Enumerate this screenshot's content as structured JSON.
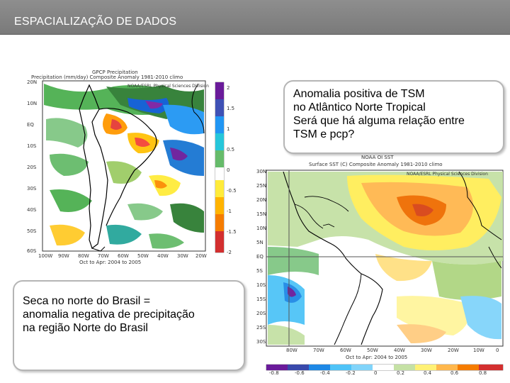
{
  "slide": {
    "title": "ESPACIALIZAÇÃO DE DADOS"
  },
  "callouts": {
    "top_right": [
      "Anomalia positiva de TSM",
      "no Atlântico Norte Tropical",
      "Será que há alguma relação entre",
      "TSM e pcp?"
    ],
    "bottom_left": [
      "Seca no norte do Brasil =",
      "anomalia negativa de precipitação",
      "na região Norte do Brasil"
    ]
  },
  "precip_map": {
    "header1": "GPCP Precipitation",
    "header2": "Precipitation (mm/day) Composite Anomaly 1981-2010 climo",
    "watermark": "NOAA/ESRL Physical Sciences Division",
    "date_range": "Oct to Apr: 2004 to 2005",
    "colorbar_labels": [
      "2",
      "1.5",
      "1",
      "0.5",
      "0",
      "-0.5",
      "-1",
      "-1.5",
      "-2"
    ],
    "lat_labels": [
      "20N",
      "10N",
      "EQ",
      "10S",
      "20S",
      "30S",
      "40S",
      "50S",
      "60S"
    ],
    "lon_labels": [
      "100W",
      "90W",
      "80W",
      "70W",
      "60W",
      "50W",
      "40W",
      "30W",
      "20W"
    ]
  },
  "sst_map": {
    "header1": "NOAA OI SST",
    "header2": "Surface SST (C) Composite Anomaly 1981-2010 climo",
    "watermark": "NOAA/ESRL Physical Sciences Division",
    "date_range": "Oct to Apr: 2004 to 2005",
    "colorbar_labels": [
      "-0.8",
      "-0.6",
      "-0.4",
      "-0.2",
      "0",
      "0.2",
      "0.4",
      "0.6",
      "0.8"
    ],
    "lat_labels": [
      "30N",
      "25N",
      "20N",
      "15N",
      "10N",
      "5N",
      "EQ",
      "5S",
      "10S",
      "15S",
      "20S",
      "25S",
      "30S"
    ],
    "lon_labels": [
      "80W",
      "70W",
      "60W",
      "50W",
      "40W",
      "30W",
      "20W",
      "10W",
      "0"
    ]
  }
}
